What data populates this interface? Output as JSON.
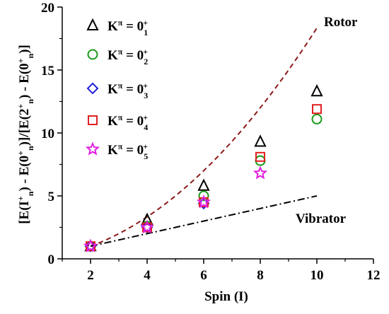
{
  "chart_data": {
    "type": "scatter",
    "xlabel": "Spin (I)",
    "ylabel_parts": {
      "open1": "[E(I",
      "sup1": "+",
      "sub1": "n",
      "mid1": ") - E(0",
      "sup2": "+",
      "sub2": "n",
      "mid2": ")]/[E(2",
      "sup3": "+",
      "sub3": "n",
      "mid3": ") - E(0",
      "sup4": "+",
      "sub4": "n",
      "close": ")]"
    },
    "xlim": [
      1,
      12
    ],
    "ylim": [
      0,
      20
    ],
    "x_ticks": [
      2,
      4,
      6,
      8,
      10,
      12
    ],
    "y_ticks": [
      0,
      5,
      10,
      15,
      20
    ],
    "legend_placement": "top-left",
    "series": [
      {
        "name": "K",
        "sup": "π",
        "eq": " = 0",
        "sub": "1",
        "sup2": "+",
        "marker": "triangle",
        "color": "#000000",
        "x": [
          2,
          4,
          6,
          8,
          10
        ],
        "y": [
          1.0,
          3.1,
          5.8,
          9.3,
          13.3
        ]
      },
      {
        "name": "K",
        "sup": "π",
        "eq": " = 0",
        "sub": "2",
        "sup2": "+",
        "marker": "circle",
        "color": "#1a9a1a",
        "x": [
          2,
          4,
          6,
          8,
          10
        ],
        "y": [
          1.0,
          2.6,
          5.0,
          7.8,
          11.1
        ]
      },
      {
        "name": "K",
        "sup": "π",
        "eq": " = 0",
        "sub": "3",
        "sup2": "+",
        "marker": "diamond",
        "color": "#1f1fd6",
        "x": [
          2,
          4,
          6
        ],
        "y": [
          1.0,
          2.5,
          4.4
        ]
      },
      {
        "name": "K",
        "sup": "π",
        "eq": " = 0",
        "sub": "4",
        "sup2": "+",
        "marker": "square",
        "color": "#e02020",
        "x": [
          2,
          4,
          6,
          8,
          10
        ],
        "y": [
          1.0,
          2.5,
          4.5,
          8.1,
          11.9
        ]
      },
      {
        "name": "K",
        "sup": "π",
        "eq": " = 0",
        "sub": "5",
        "sup2": "+",
        "marker": "star",
        "color": "#e020e0",
        "x": [
          2,
          4,
          6,
          8
        ],
        "y": [
          1.0,
          2.5,
          4.5,
          6.8
        ]
      }
    ],
    "curves": [
      {
        "label": "Rotor",
        "style": "dashed",
        "color": "#8b1a1a",
        "x_range": [
          2,
          10
        ],
        "formula": "I(I+1)/6"
      },
      {
        "label": "Vibrator",
        "style": "dash-dot",
        "color": "#000000",
        "x_range": [
          2,
          10
        ],
        "formula": "I/2"
      }
    ]
  }
}
